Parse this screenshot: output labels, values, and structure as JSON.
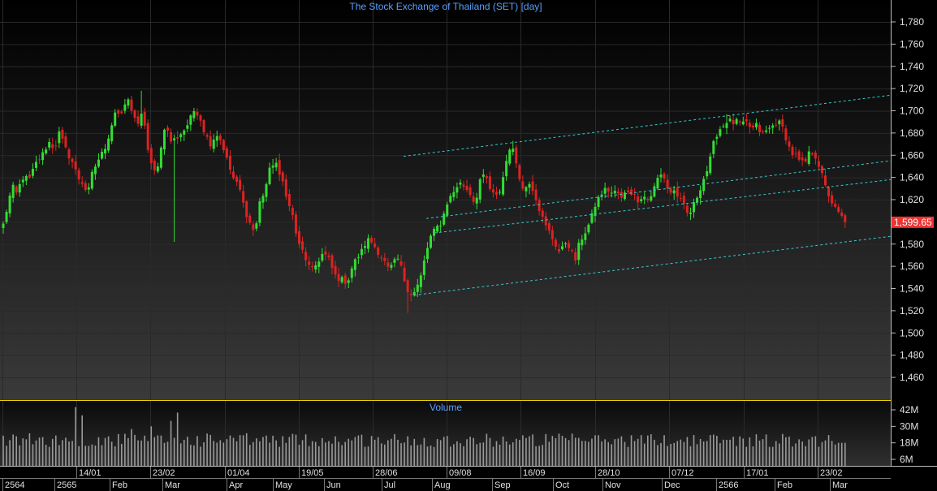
{
  "title": "The Stock Exchange of Thailand (SET) [day]",
  "volume_title": "Volume",
  "last_price_label": "1,599.65",
  "colors": {
    "up": "#33dd33",
    "down": "#dd2222",
    "channel": "#33cccc",
    "title": "#5aa0ff",
    "separator": "#e8d000",
    "volume": "#9a9a9a",
    "price_tag": "#ee3333"
  },
  "price_axis_labels": [
    "1,780",
    "1,760",
    "1,740",
    "1,720",
    "1,700",
    "1,680",
    "1,660",
    "1,640",
    "1,620",
    "1,600",
    "1,580",
    "1,560",
    "1,540",
    "1,520",
    "1,500",
    "1,480",
    "1,460"
  ],
  "volume_axis_labels": [
    "42M",
    "30M",
    "18M",
    "6M"
  ],
  "date_labels_top": [
    "14/01",
    "23/02",
    "01/04",
    "19/05",
    "28/06",
    "09/08",
    "16/09",
    "28/10",
    "07/12",
    "17/01",
    "23/02"
  ],
  "date_labels_bottom": [
    "2564",
    "2565",
    "Feb",
    "Mar",
    "Apr",
    "May",
    "Jun",
    "Jul",
    "Aug",
    "Sep",
    "Oct",
    "Nov",
    "Dec",
    "2566",
    "Feb",
    "Mar"
  ],
  "chart_data": {
    "type": "candlestick",
    "title": "The Stock Exchange of Thailand (SET) [day]",
    "y_range": [
      1450,
      1790
    ],
    "y_ticks": [
      1460,
      1480,
      1500,
      1520,
      1540,
      1560,
      1580,
      1600,
      1620,
      1640,
      1660,
      1680,
      1700,
      1720,
      1740,
      1760,
      1780
    ],
    "last_price": 1599.65,
    "close_path": [
      [
        0,
        1585
      ],
      [
        8,
        1610
      ],
      [
        15,
        1632
      ],
      [
        20,
        1625
      ],
      [
        28,
        1640
      ],
      [
        36,
        1638
      ],
      [
        44,
        1652
      ],
      [
        52,
        1660
      ],
      [
        60,
        1672
      ],
      [
        67,
        1666
      ],
      [
        73,
        1680
      ],
      [
        81,
        1665
      ],
      [
        89,
        1654
      ],
      [
        96,
        1640
      ],
      [
        103,
        1634
      ],
      [
        108,
        1624
      ],
      [
        114,
        1645
      ],
      [
        121,
        1656
      ],
      [
        128,
        1664
      ],
      [
        134,
        1678
      ],
      [
        142,
        1700
      ],
      [
        150,
        1695
      ],
      [
        156,
        1712
      ],
      [
        163,
        1700
      ],
      [
        170,
        1686
      ],
      [
        176,
        1700
      ],
      [
        183,
        1660
      ],
      [
        189,
        1643
      ],
      [
        196,
        1655
      ],
      [
        203,
        1688
      ],
      [
        211,
        1672
      ],
      [
        218,
        1676
      ],
      [
        226,
        1682
      ],
      [
        233,
        1690
      ],
      [
        240,
        1702
      ],
      [
        246,
        1695
      ],
      [
        253,
        1678
      ],
      [
        260,
        1670
      ],
      [
        266,
        1680
      ],
      [
        273,
        1672
      ],
      [
        281,
        1652
      ],
      [
        288,
        1638
      ],
      [
        295,
        1630
      ],
      [
        300,
        1615
      ],
      [
        307,
        1600
      ],
      [
        314,
        1590
      ],
      [
        320,
        1618
      ],
      [
        326,
        1628
      ],
      [
        332,
        1646
      ],
      [
        339,
        1657
      ],
      [
        344,
        1640
      ],
      [
        350,
        1634
      ],
      [
        355,
        1616
      ],
      [
        361,
        1604
      ],
      [
        367,
        1580
      ],
      [
        374,
        1572
      ],
      [
        380,
        1560
      ],
      [
        385,
        1556
      ],
      [
        391,
        1564
      ],
      [
        398,
        1572
      ],
      [
        405,
        1566
      ],
      [
        412,
        1552
      ],
      [
        420,
        1548
      ],
      [
        428,
        1546
      ],
      [
        434,
        1560
      ],
      [
        440,
        1568
      ],
      [
        446,
        1574
      ],
      [
        452,
        1584
      ],
      [
        458,
        1582
      ],
      [
        465,
        1574
      ],
      [
        472,
        1566
      ],
      [
        479,
        1556
      ],
      [
        484,
        1562
      ],
      [
        491,
        1567
      ],
      [
        498,
        1548
      ],
      [
        503,
        1538
      ],
      [
        508,
        1534
      ],
      [
        513,
        1540
      ],
      [
        519,
        1552
      ],
      [
        524,
        1570
      ],
      [
        530,
        1586
      ],
      [
        537,
        1594
      ],
      [
        544,
        1600
      ],
      [
        551,
        1618
      ],
      [
        558,
        1626
      ],
      [
        565,
        1635
      ],
      [
        572,
        1632
      ],
      [
        579,
        1626
      ],
      [
        585,
        1616
      ],
      [
        591,
        1638
      ],
      [
        598,
        1641
      ],
      [
        605,
        1626
      ],
      [
        611,
        1622
      ],
      [
        617,
        1630
      ],
      [
        622,
        1650
      ],
      [
        628,
        1668
      ],
      [
        633,
        1662
      ],
      [
        639,
        1644
      ],
      [
        645,
        1626
      ],
      [
        651,
        1638
      ],
      [
        658,
        1627
      ],
      [
        665,
        1610
      ],
      [
        671,
        1597
      ],
      [
        677,
        1590
      ],
      [
        684,
        1580
      ],
      [
        690,
        1571
      ],
      [
        696,
        1582
      ],
      [
        702,
        1578
      ],
      [
        708,
        1564
      ],
      [
        714,
        1582
      ],
      [
        720,
        1590
      ],
      [
        727,
        1600
      ],
      [
        733,
        1615
      ],
      [
        740,
        1625
      ],
      [
        747,
        1630
      ],
      [
        753,
        1626
      ],
      [
        760,
        1627
      ],
      [
        766,
        1620
      ],
      [
        772,
        1629
      ],
      [
        779,
        1626
      ],
      [
        785,
        1620
      ],
      [
        792,
        1624
      ],
      [
        799,
        1619
      ],
      [
        806,
        1631
      ],
      [
        812,
        1643
      ],
      [
        818,
        1640
      ],
      [
        824,
        1626
      ],
      [
        830,
        1628
      ],
      [
        836,
        1622
      ],
      [
        842,
        1614
      ],
      [
        848,
        1605
      ],
      [
        855,
        1616
      ],
      [
        861,
        1628
      ],
      [
        867,
        1640
      ],
      [
        873,
        1650
      ],
      [
        878,
        1668
      ],
      [
        884,
        1682
      ],
      [
        890,
        1686
      ],
      [
        896,
        1692
      ],
      [
        902,
        1689
      ],
      [
        908,
        1690
      ],
      [
        914,
        1687
      ],
      [
        920,
        1689
      ],
      [
        926,
        1683
      ],
      [
        932,
        1687
      ],
      [
        938,
        1678
      ],
      [
        944,
        1682
      ],
      [
        950,
        1685
      ],
      [
        956,
        1690
      ],
      [
        962,
        1688
      ],
      [
        968,
        1676
      ],
      [
        974,
        1662
      ],
      [
        980,
        1660
      ],
      [
        986,
        1652
      ],
      [
        992,
        1654
      ],
      [
        998,
        1664
      ],
      [
        1004,
        1660
      ],
      [
        1010,
        1648
      ],
      [
        1016,
        1632
      ],
      [
        1022,
        1622
      ],
      [
        1028,
        1612
      ],
      [
        1034,
        1606
      ],
      [
        1040,
        1602
      ],
      [
        1044,
        1600
      ]
    ],
    "extremes": [
      {
        "x": 176,
        "high": 1718
      },
      {
        "x": 216,
        "low": 1582
      },
      {
        "x": 503,
        "low": 1518
      },
      {
        "x": 630,
        "high": 1673
      },
      {
        "x": 896,
        "high": 1697
      }
    ],
    "volume_range": [
      0,
      50
    ],
    "volume_unit": "M",
    "volume_ticks": [
      6,
      18,
      30,
      42
    ],
    "volume_average": 20,
    "volume_peaks": [
      [
        95,
        44
      ],
      [
        103,
        38
      ],
      [
        212,
        34
      ],
      [
        218,
        40
      ],
      [
        160,
        28
      ],
      [
        185,
        30
      ]
    ],
    "channel_lines": [
      {
        "from": [
          497,
          1659
        ],
        "to": [
          1097,
          1714
        ]
      },
      {
        "from": [
          525,
          1603
        ],
        "to": [
          1097,
          1655
        ]
      },
      {
        "from": [
          535,
          1590
        ],
        "to": [
          1097,
          1638
        ]
      },
      {
        "from": [
          510,
          1534
        ],
        "to": [
          1097,
          1587
        ]
      }
    ]
  }
}
